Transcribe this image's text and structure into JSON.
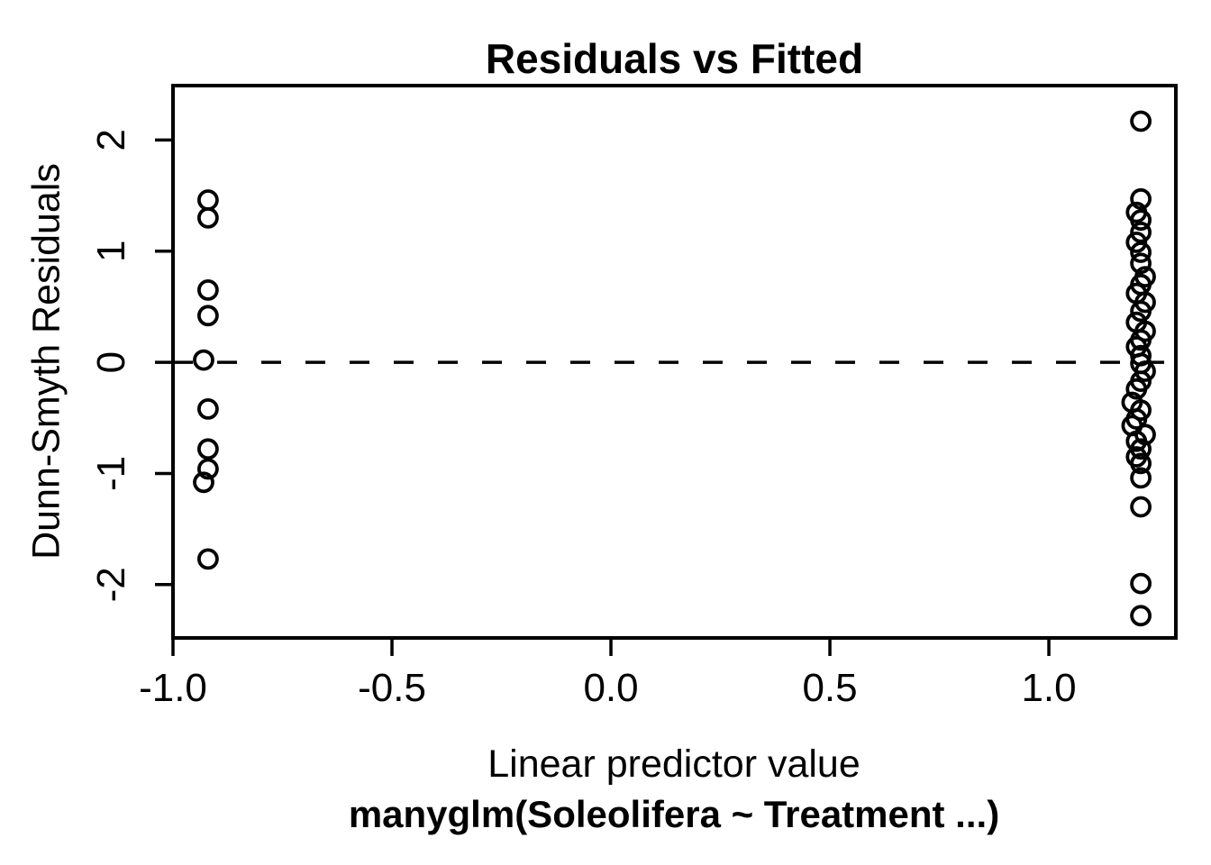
{
  "figure": {
    "background_color": "#ffffff",
    "foreground_color": "#000000"
  },
  "chart_data": {
    "type": "scatter",
    "title": "Residuals vs Fitted",
    "xlabel": "Linear predictor value",
    "xlabel_sub": "manyglm(Soleolifera ~ Treatment ...)",
    "ylabel": "Dunn-Smyth Residuals",
    "xlim": [
      -1.0,
      1.29
    ],
    "ylim": [
      -2.48,
      2.49
    ],
    "x_ticks": [
      -1.0,
      -0.5,
      0.0,
      0.5,
      1.0
    ],
    "x_tick_labels": [
      "-1.0",
      "-0.5",
      "0.0",
      "0.5",
      "1.0"
    ],
    "y_ticks": [
      2,
      1,
      0,
      -1,
      -2
    ],
    "y_tick_labels": [
      "2",
      "1",
      "0",
      "-1",
      "-2"
    ],
    "grid": false,
    "legend": false,
    "reference_line": {
      "axis": "y",
      "value": 0,
      "style": "dashed",
      "color": "#000000"
    },
    "marker": {
      "shape": "open-circle",
      "color": "#000000"
    },
    "points": [
      [
        -0.92,
        1.46
      ],
      [
        -0.92,
        1.3
      ],
      [
        -0.92,
        0.65
      ],
      [
        -0.92,
        0.42
      ],
      [
        -0.93,
        0.02
      ],
      [
        -0.92,
        -0.42
      ],
      [
        -0.92,
        -0.78
      ],
      [
        -0.92,
        -0.96
      ],
      [
        -0.93,
        -1.08
      ],
      [
        -0.92,
        -1.77
      ],
      [
        1.21,
        2.17
      ],
      [
        1.21,
        1.47
      ],
      [
        1.2,
        1.35
      ],
      [
        1.21,
        1.28
      ],
      [
        1.21,
        1.17
      ],
      [
        1.2,
        1.08
      ],
      [
        1.21,
        0.99
      ],
      [
        1.21,
        0.89
      ],
      [
        1.22,
        0.77
      ],
      [
        1.21,
        0.7
      ],
      [
        1.2,
        0.62
      ],
      [
        1.22,
        0.54
      ],
      [
        1.21,
        0.46
      ],
      [
        1.2,
        0.36
      ],
      [
        1.22,
        0.28
      ],
      [
        1.21,
        0.2
      ],
      [
        1.2,
        0.14
      ],
      [
        1.21,
        0.06
      ],
      [
        1.21,
        -0.01
      ],
      [
        1.22,
        -0.08
      ],
      [
        1.21,
        -0.17
      ],
      [
        1.2,
        -0.24
      ],
      [
        1.19,
        -0.36
      ],
      [
        1.21,
        -0.43
      ],
      [
        1.2,
        -0.51
      ],
      [
        1.19,
        -0.57
      ],
      [
        1.22,
        -0.65
      ],
      [
        1.2,
        -0.71
      ],
      [
        1.21,
        -0.78
      ],
      [
        1.2,
        -0.85
      ],
      [
        1.21,
        -0.91
      ],
      [
        1.21,
        -1.04
      ],
      [
        1.21,
        -1.3
      ],
      [
        1.21,
        -1.99
      ],
      [
        1.21,
        -2.28
      ]
    ]
  }
}
